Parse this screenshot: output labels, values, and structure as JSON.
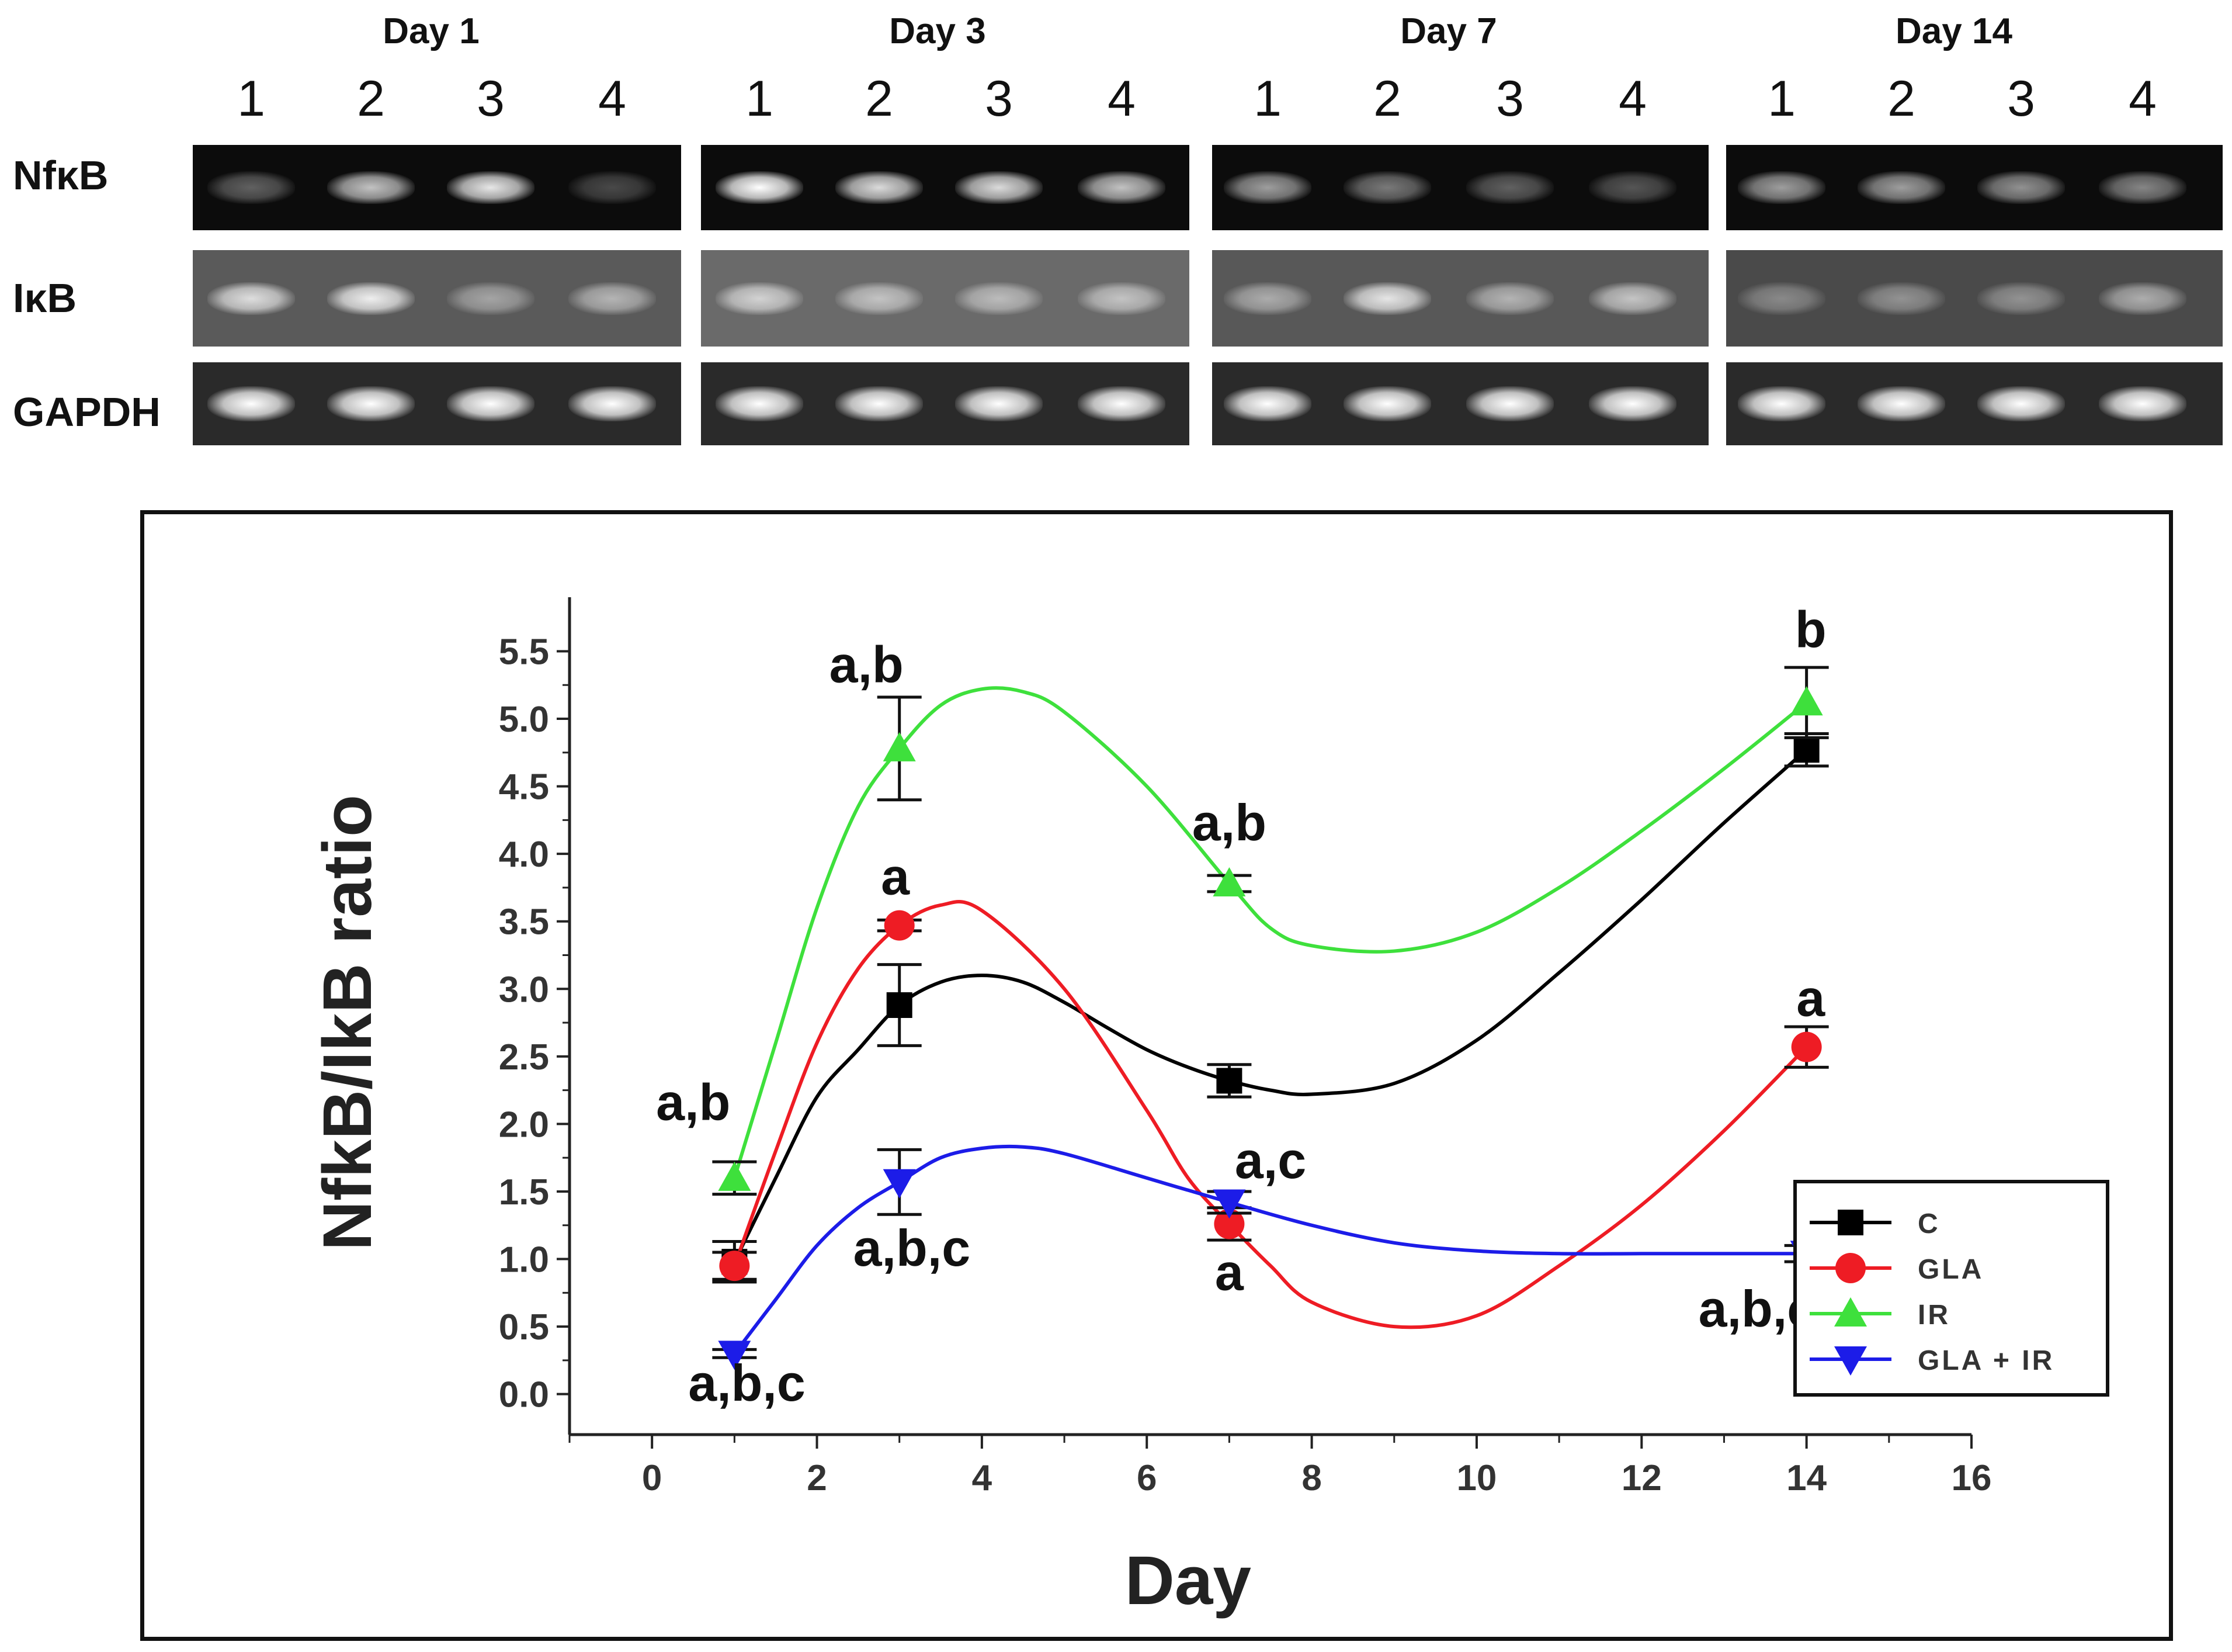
{
  "gel": {
    "days": [
      "Day 1",
      "Day 3",
      "Day 7",
      "Day 14"
    ],
    "lanes": [
      "1",
      "2",
      "3",
      "4"
    ],
    "genes": [
      "NfκB",
      "IκB",
      "GAPDH"
    ]
  },
  "chart_data": {
    "type": "line",
    "title": "",
    "xlabel": "Day",
    "ylabel": "NfkB/IkB ratio",
    "xlim": [
      -1,
      16
    ],
    "ylim": [
      -0.3,
      5.9
    ],
    "xticks": [
      0,
      2,
      4,
      6,
      8,
      10,
      12,
      14,
      16
    ],
    "yticks": [
      0.0,
      0.5,
      1.0,
      1.5,
      2.0,
      2.5,
      3.0,
      3.5,
      4.0,
      4.5,
      5.0,
      5.5
    ],
    "ytick_labels": [
      "0.0",
      "0.5",
      "1.0",
      "1.5",
      "2.0",
      "2.5",
      "3.0",
      "3.5",
      "4.0",
      "4.5",
      "5.0",
      "5.5"
    ],
    "x": [
      1,
      3,
      7,
      14
    ],
    "series": [
      {
        "name": "C",
        "color": "#000000",
        "marker": "square",
        "values": [
          0.98,
          2.88,
          2.32,
          4.77
        ],
        "errors": [
          0.15,
          0.3,
          0.12,
          0.12
        ],
        "curve": [
          [
            1,
            0.98
          ],
          [
            1.5,
            1.6
          ],
          [
            2,
            2.2
          ],
          [
            2.5,
            2.55
          ],
          [
            3,
            2.88
          ],
          [
            3.5,
            3.05
          ],
          [
            4,
            3.1
          ],
          [
            4.5,
            3.05
          ],
          [
            5,
            2.9
          ],
          [
            5.5,
            2.72
          ],
          [
            6,
            2.55
          ],
          [
            6.5,
            2.42
          ],
          [
            7,
            2.32
          ],
          [
            7.5,
            2.25
          ],
          [
            8,
            2.22
          ],
          [
            9,
            2.3
          ],
          [
            10,
            2.62
          ],
          [
            11,
            3.12
          ],
          [
            12,
            3.66
          ],
          [
            13,
            4.23
          ],
          [
            14,
            4.77
          ]
        ]
      },
      {
        "name": "GLA",
        "color": "#ee1c24",
        "marker": "circle",
        "values": [
          0.95,
          3.47,
          1.26,
          2.57
        ],
        "errors": [
          0.1,
          0.04,
          0.12,
          0.15
        ],
        "curve": [
          [
            1,
            0.95
          ],
          [
            1.5,
            1.8
          ],
          [
            2,
            2.6
          ],
          [
            2.5,
            3.15
          ],
          [
            3,
            3.47
          ],
          [
            3.5,
            3.62
          ],
          [
            4,
            3.58
          ],
          [
            5,
            3.0
          ],
          [
            6,
            2.1
          ],
          [
            6.5,
            1.6
          ],
          [
            7,
            1.26
          ],
          [
            7.5,
            0.95
          ],
          [
            8,
            0.68
          ],
          [
            9,
            0.5
          ],
          [
            10,
            0.58
          ],
          [
            11,
            0.95
          ],
          [
            12,
            1.4
          ],
          [
            13,
            1.95
          ],
          [
            14,
            2.57
          ]
        ]
      },
      {
        "name": "IR",
        "color": "#3ee03c",
        "marker": "triangle-up",
        "values": [
          1.6,
          4.78,
          3.78,
          5.12
        ],
        "errors": [
          0.12,
          0.38,
          0.06,
          0.26
        ],
        "curve": [
          [
            1,
            1.6
          ],
          [
            1.5,
            2.6
          ],
          [
            2,
            3.6
          ],
          [
            2.5,
            4.35
          ],
          [
            3,
            4.78
          ],
          [
            3.5,
            5.1
          ],
          [
            4,
            5.22
          ],
          [
            4.5,
            5.2
          ],
          [
            5,
            5.05
          ],
          [
            6,
            4.5
          ],
          [
            7,
            3.78
          ],
          [
            7.5,
            3.45
          ],
          [
            8,
            3.32
          ],
          [
            9,
            3.28
          ],
          [
            10,
            3.42
          ],
          [
            11,
            3.75
          ],
          [
            12,
            4.17
          ],
          [
            13,
            4.63
          ],
          [
            14,
            5.12
          ]
        ]
      },
      {
        "name": "GLA + IR",
        "color": "#1c1ce8",
        "marker": "triangle-down",
        "values": [
          0.3,
          1.57,
          1.42,
          1.04
        ],
        "errors": [
          0.03,
          0.24,
          0.08,
          0.06
        ],
        "curve": [
          [
            1,
            0.3
          ],
          [
            1.5,
            0.7
          ],
          [
            2,
            1.1
          ],
          [
            2.5,
            1.38
          ],
          [
            3,
            1.57
          ],
          [
            3.5,
            1.75
          ],
          [
            4,
            1.82
          ],
          [
            4.5,
            1.83
          ],
          [
            5,
            1.78
          ],
          [
            6,
            1.6
          ],
          [
            7,
            1.42
          ],
          [
            8,
            1.25
          ],
          [
            9,
            1.12
          ],
          [
            10,
            1.06
          ],
          [
            11,
            1.04
          ],
          [
            12,
            1.04
          ],
          [
            13,
            1.04
          ],
          [
            14,
            1.04
          ]
        ]
      }
    ],
    "annotations": [
      {
        "text": "a,b",
        "x": 0.5,
        "y": 2.03
      },
      {
        "text": "a,b,c",
        "x": 1.15,
        "y": -0.05
      },
      {
        "text": "a,b",
        "x": 2.6,
        "y": 5.27
      },
      {
        "text": "a",
        "x": 2.95,
        "y": 3.7
      },
      {
        "text": "a,b,c",
        "x": 3.15,
        "y": 0.95
      },
      {
        "text": "a,b",
        "x": 7.0,
        "y": 4.1
      },
      {
        "text": "a,c",
        "x": 7.5,
        "y": 1.6
      },
      {
        "text": "a",
        "x": 7.0,
        "y": 0.77
      },
      {
        "text": "b",
        "x": 14.05,
        "y": 5.53
      },
      {
        "text": "a",
        "x": 14.05,
        "y": 2.8
      },
      {
        "text": "a,b,c",
        "x": 13.4,
        "y": 0.5
      }
    ],
    "legend": {
      "position": "lower-right",
      "entries": [
        "C",
        "GLA",
        "IR",
        "GLA + IR"
      ]
    }
  }
}
